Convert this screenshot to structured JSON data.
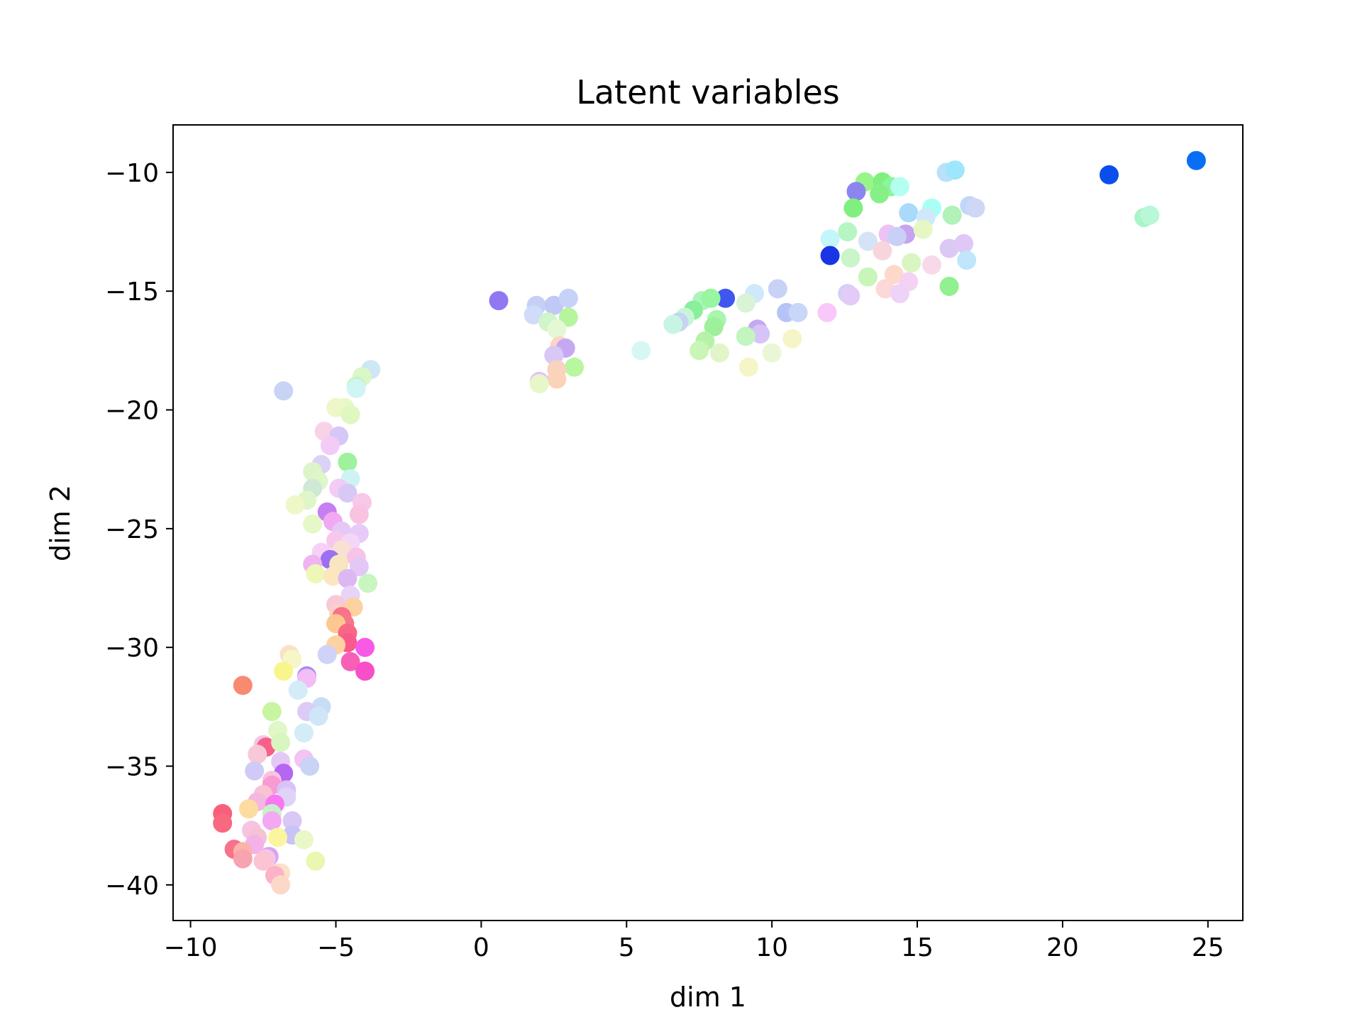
{
  "chart_data": {
    "type": "scatter",
    "title": "Latent variables",
    "xlabel": "dim 1",
    "ylabel": "dim 2",
    "xlim": [
      -10.6,
      26.2
    ],
    "ylim": [
      -41.5,
      -8.0
    ],
    "xticks": [
      -10,
      -5,
      0,
      5,
      10,
      15,
      20,
      25
    ],
    "yticks": [
      -10,
      -15,
      -20,
      -25,
      -30,
      -35,
      -40
    ],
    "xtick_labels": [
      "−10",
      "−5",
      "0",
      "5",
      "10",
      "15",
      "20",
      "25"
    ],
    "ytick_labels": [
      "−10",
      "−15",
      "−20",
      "−25",
      "−30",
      "−35",
      "−40"
    ],
    "grid": false,
    "legend": "none",
    "points": [
      {
        "x": 24.6,
        "y": -9.5,
        "color": "#0a6ef5"
      },
      {
        "x": 21.6,
        "y": -10.1,
        "color": "#0a4fee"
      },
      {
        "x": 22.8,
        "y": -11.9,
        "color": "#a8f5c8"
      },
      {
        "x": 23.0,
        "y": -11.8,
        "color": "#b8f7d8"
      },
      {
        "x": 16.0,
        "y": -10.0,
        "color": "#b8e2fa"
      },
      {
        "x": 16.3,
        "y": -9.9,
        "color": "#9ee6fb"
      },
      {
        "x": 13.2,
        "y": -10.4,
        "color": "#99f58a"
      },
      {
        "x": 13.8,
        "y": -10.4,
        "color": "#7ff07f"
      },
      {
        "x": 14.1,
        "y": -10.6,
        "color": "#8af59a"
      },
      {
        "x": 14.4,
        "y": -10.6,
        "color": "#b3fff0"
      },
      {
        "x": 13.7,
        "y": -10.9,
        "color": "#86f086"
      },
      {
        "x": 12.9,
        "y": -10.8,
        "color": "#8b86ef"
      },
      {
        "x": 12.8,
        "y": -11.5,
        "color": "#7ff07f"
      },
      {
        "x": 14.7,
        "y": -11.7,
        "color": "#a9d9fb"
      },
      {
        "x": 15.5,
        "y": -11.5,
        "color": "#aafff5"
      },
      {
        "x": 16.2,
        "y": -11.8,
        "color": "#b0f2b8"
      },
      {
        "x": 16.8,
        "y": -11.4,
        "color": "#c1d7fa"
      },
      {
        "x": 17.0,
        "y": -11.5,
        "color": "#cfd7f6"
      },
      {
        "x": 15.3,
        "y": -11.9,
        "color": "#cfe9fb"
      },
      {
        "x": 12.0,
        "y": -12.8,
        "color": "#c3f6fb"
      },
      {
        "x": 12.6,
        "y": -12.5,
        "color": "#b7f5c2"
      },
      {
        "x": 13.3,
        "y": -12.9,
        "color": "#d4e4f6"
      },
      {
        "x": 14.0,
        "y": -12.6,
        "color": "#efc2f7"
      },
      {
        "x": 14.6,
        "y": -12.6,
        "color": "#c7a3f0"
      },
      {
        "x": 15.2,
        "y": -12.4,
        "color": "#e7f7c4"
      },
      {
        "x": 14.3,
        "y": -12.7,
        "color": "#c8d0f6"
      },
      {
        "x": 16.1,
        "y": -13.2,
        "color": "#dcc8f5"
      },
      {
        "x": 16.6,
        "y": -13.0,
        "color": "#dfc8f7"
      },
      {
        "x": 16.7,
        "y": -13.7,
        "color": "#bfe6fb"
      },
      {
        "x": 12.0,
        "y": -13.5,
        "color": "#1a35e5"
      },
      {
        "x": 12.7,
        "y": -13.6,
        "color": "#c9f5c9"
      },
      {
        "x": 13.8,
        "y": -13.3,
        "color": "#f8d5dd"
      },
      {
        "x": 15.5,
        "y": -13.9,
        "color": "#f8d9ea"
      },
      {
        "x": 14.8,
        "y": -13.8,
        "color": "#d9f5c2"
      },
      {
        "x": 13.3,
        "y": -14.4,
        "color": "#c8f5b8"
      },
      {
        "x": 14.2,
        "y": -14.3,
        "color": "#ffd9c8"
      },
      {
        "x": 14.7,
        "y": -14.6,
        "color": "#f5d2f2"
      },
      {
        "x": 13.9,
        "y": -14.9,
        "color": "#fcd8d8"
      },
      {
        "x": 14.4,
        "y": -15.1,
        "color": "#efd2f7"
      },
      {
        "x": 16.1,
        "y": -14.8,
        "color": "#91f08f"
      },
      {
        "x": 12.6,
        "y": -15.1,
        "color": "#d3d0f6"
      },
      {
        "x": 12.7,
        "y": -15.2,
        "color": "#e3cbf7"
      },
      {
        "x": 11.9,
        "y": -15.9,
        "color": "#f8c8fa"
      },
      {
        "x": 10.2,
        "y": -14.9,
        "color": "#c8d2f6"
      },
      {
        "x": 10.5,
        "y": -15.9,
        "color": "#b6c3f6"
      },
      {
        "x": 10.9,
        "y": -15.9,
        "color": "#c8d6f8"
      },
      {
        "x": 9.4,
        "y": -15.1,
        "color": "#cfe9fb"
      },
      {
        "x": 9.1,
        "y": -15.5,
        "color": "#d9f3d6"
      },
      {
        "x": 8.4,
        "y": -15.3,
        "color": "#3f56f0"
      },
      {
        "x": 7.6,
        "y": -15.4,
        "color": "#aaf5b8"
      },
      {
        "x": 7.9,
        "y": -15.3,
        "color": "#98f5a0"
      },
      {
        "x": 7.3,
        "y": -15.8,
        "color": "#88f09a"
      },
      {
        "x": 7.0,
        "y": -16.1,
        "color": "#c8f5d8"
      },
      {
        "x": 6.8,
        "y": -16.3,
        "color": "#c6d4f4"
      },
      {
        "x": 6.6,
        "y": -16.4,
        "color": "#c8f5e3"
      },
      {
        "x": 8.1,
        "y": -16.2,
        "color": "#a8f5b0"
      },
      {
        "x": 8.0,
        "y": -16.5,
        "color": "#9ef09a"
      },
      {
        "x": 9.5,
        "y": -16.6,
        "color": "#c4a8f2"
      },
      {
        "x": 9.6,
        "y": -16.8,
        "color": "#d6c3f8"
      },
      {
        "x": 9.1,
        "y": -16.9,
        "color": "#c2f5c0"
      },
      {
        "x": 10.7,
        "y": -17.0,
        "color": "#f6f5c8"
      },
      {
        "x": 7.7,
        "y": -17.1,
        "color": "#b6f3a8"
      },
      {
        "x": 7.5,
        "y": -17.5,
        "color": "#c9f5b6"
      },
      {
        "x": 8.2,
        "y": -17.6,
        "color": "#e2f5c8"
      },
      {
        "x": 10.0,
        "y": -17.6,
        "color": "#eaf7d6"
      },
      {
        "x": 9.2,
        "y": -18.2,
        "color": "#f5f5c8"
      },
      {
        "x": 5.5,
        "y": -17.5,
        "color": "#d8f7f3"
      },
      {
        "x": 0.6,
        "y": -15.4,
        "color": "#9177f2"
      },
      {
        "x": 1.9,
        "y": -15.6,
        "color": "#c5d0f8"
      },
      {
        "x": 2.5,
        "y": -15.6,
        "color": "#c0c8f6"
      },
      {
        "x": 3.0,
        "y": -15.3,
        "color": "#c6d2f8"
      },
      {
        "x": 1.8,
        "y": -16.0,
        "color": "#d0dcf8"
      },
      {
        "x": 2.3,
        "y": -16.3,
        "color": "#d0f5c8"
      },
      {
        "x": 3.0,
        "y": -16.1,
        "color": "#b6f59c"
      },
      {
        "x": 2.6,
        "y": -16.6,
        "color": "#e6f7d6"
      },
      {
        "x": 2.7,
        "y": -17.3,
        "color": "#fcd6c0"
      },
      {
        "x": 2.9,
        "y": -17.4,
        "color": "#c6a8f2"
      },
      {
        "x": 2.5,
        "y": -17.7,
        "color": "#d8c8f6"
      },
      {
        "x": 3.2,
        "y": -18.2,
        "color": "#b6f7a0"
      },
      {
        "x": 2.6,
        "y": -18.3,
        "color": "#f8d3c0"
      },
      {
        "x": 2.6,
        "y": -18.7,
        "color": "#fbd3b8"
      },
      {
        "x": 2.0,
        "y": -18.8,
        "color": "#e0c3f7"
      },
      {
        "x": 2.0,
        "y": -18.9,
        "color": "#e7f7c8"
      },
      {
        "x": -3.8,
        "y": -18.3,
        "color": "#cfe6f6"
      },
      {
        "x": -4.1,
        "y": -18.6,
        "color": "#d9f7c8"
      },
      {
        "x": -4.3,
        "y": -19.0,
        "color": "#c8f3c0"
      },
      {
        "x": -4.3,
        "y": -19.1,
        "color": "#d0f6f3"
      },
      {
        "x": -6.8,
        "y": -19.2,
        "color": "#c8d3f5"
      },
      {
        "x": -4.7,
        "y": -19.9,
        "color": "#e9f7c8"
      },
      {
        "x": -5.0,
        "y": -19.9,
        "color": "#eef7c8"
      },
      {
        "x": -4.5,
        "y": -20.2,
        "color": "#dff7c0"
      },
      {
        "x": -5.4,
        "y": -20.9,
        "color": "#f8d3e8"
      },
      {
        "x": -4.9,
        "y": -21.1,
        "color": "#d5c8f6"
      },
      {
        "x": -5.2,
        "y": -21.5,
        "color": "#f3cbf7"
      },
      {
        "x": -4.6,
        "y": -22.2,
        "color": "#9ef29c"
      },
      {
        "x": -5.5,
        "y": -22.3,
        "color": "#dcd2f6"
      },
      {
        "x": -5.8,
        "y": -22.6,
        "color": "#dcf5c8"
      },
      {
        "x": -4.5,
        "y": -22.9,
        "color": "#cff3f5"
      },
      {
        "x": -5.6,
        "y": -23.0,
        "color": "#dff7c8"
      },
      {
        "x": -5.8,
        "y": -23.3,
        "color": "#cfe9d6"
      },
      {
        "x": -4.9,
        "y": -23.3,
        "color": "#f3cbf5"
      },
      {
        "x": -4.6,
        "y": -23.5,
        "color": "#d8c8f6"
      },
      {
        "x": -6.0,
        "y": -23.8,
        "color": "#dff7c8"
      },
      {
        "x": -6.4,
        "y": -24.0,
        "color": "#eef7c8"
      },
      {
        "x": -4.1,
        "y": -23.9,
        "color": "#f8c8e8"
      },
      {
        "x": -5.3,
        "y": -24.3,
        "color": "#c67ff2"
      },
      {
        "x": -4.2,
        "y": -24.4,
        "color": "#f8c3e0"
      },
      {
        "x": -5.1,
        "y": -24.7,
        "color": "#f3a8f2"
      },
      {
        "x": -5.8,
        "y": -24.8,
        "color": "#e6f7c8"
      },
      {
        "x": -4.8,
        "y": -25.1,
        "color": "#e6c8f6"
      },
      {
        "x": -4.2,
        "y": -25.2,
        "color": "#e6cbf8"
      },
      {
        "x": -5.0,
        "y": -25.5,
        "color": "#f8c8ec"
      },
      {
        "x": -4.5,
        "y": -25.6,
        "color": "#f3d6f8"
      },
      {
        "x": -4.8,
        "y": -25.9,
        "color": "#f8e0d2"
      },
      {
        "x": -5.5,
        "y": -26.0,
        "color": "#f8d0f5"
      },
      {
        "x": -4.3,
        "y": -26.2,
        "color": "#f8c3e8"
      },
      {
        "x": -5.2,
        "y": -26.3,
        "color": "#9a6ff2"
      },
      {
        "x": -5.8,
        "y": -26.5,
        "color": "#f0b3f2"
      },
      {
        "x": -4.9,
        "y": -26.5,
        "color": "#f8e6c0"
      },
      {
        "x": -4.2,
        "y": -26.6,
        "color": "#e3c8f6"
      },
      {
        "x": -5.7,
        "y": -26.9,
        "color": "#eef7b8"
      },
      {
        "x": -5.1,
        "y": -27.0,
        "color": "#fce6c0"
      },
      {
        "x": -4.6,
        "y": -27.1,
        "color": "#dcb8f3"
      },
      {
        "x": -3.9,
        "y": -27.3,
        "color": "#c8f5c0"
      },
      {
        "x": -4.5,
        "y": -27.8,
        "color": "#e9d3f8"
      },
      {
        "x": -5.0,
        "y": -28.2,
        "color": "#f8c8d8"
      },
      {
        "x": -4.4,
        "y": -28.3,
        "color": "#fcd2a0"
      },
      {
        "x": -4.9,
        "y": -28.6,
        "color": "#f8d3c0"
      },
      {
        "x": -4.8,
        "y": -28.7,
        "color": "#f8728a"
      },
      {
        "x": -4.7,
        "y": -29.0,
        "color": "#f77788"
      },
      {
        "x": -5.0,
        "y": -29.0,
        "color": "#fcc890"
      },
      {
        "x": -4.6,
        "y": -29.4,
        "color": "#f86886"
      },
      {
        "x": -4.6,
        "y": -29.8,
        "color": "#f85a8c"
      },
      {
        "x": -5.0,
        "y": -29.9,
        "color": "#fcd3a0"
      },
      {
        "x": -4.0,
        "y": -30.0,
        "color": "#f85ae6"
      },
      {
        "x": -4.5,
        "y": -30.6,
        "color": "#f860b8"
      },
      {
        "x": -4.0,
        "y": -31.0,
        "color": "#f84ec8"
      },
      {
        "x": -5.3,
        "y": -30.3,
        "color": "#cfd3f8"
      },
      {
        "x": -6.6,
        "y": -30.3,
        "color": "#fce0c8"
      },
      {
        "x": -6.5,
        "y": -30.5,
        "color": "#f8f5c8"
      },
      {
        "x": -6.8,
        "y": -31.0,
        "color": "#f8f58c"
      },
      {
        "x": -6.0,
        "y": -31.2,
        "color": "#a78bf2"
      },
      {
        "x": -6.0,
        "y": -31.3,
        "color": "#f3bdf5"
      },
      {
        "x": -8.2,
        "y": -31.6,
        "color": "#f88a70"
      },
      {
        "x": -6.3,
        "y": -31.8,
        "color": "#d3ecf8"
      },
      {
        "x": -7.2,
        "y": -32.7,
        "color": "#c8f5a0"
      },
      {
        "x": -5.5,
        "y": -32.5,
        "color": "#c8dcf6"
      },
      {
        "x": -6.0,
        "y": -32.7,
        "color": "#dccbf6"
      },
      {
        "x": -5.6,
        "y": -32.9,
        "color": "#cfe6f8"
      },
      {
        "x": -7.0,
        "y": -33.5,
        "color": "#e0f7c8"
      },
      {
        "x": -6.1,
        "y": -33.6,
        "color": "#d3ecf6"
      },
      {
        "x": -7.5,
        "y": -34.1,
        "color": "#f3c8e6"
      },
      {
        "x": -7.4,
        "y": -34.2,
        "color": "#f8608a"
      },
      {
        "x": -6.9,
        "y": -34.0,
        "color": "#d9f5c0"
      },
      {
        "x": -6.1,
        "y": -34.7,
        "color": "#f3c3f3"
      },
      {
        "x": -7.7,
        "y": -34.5,
        "color": "#f8c8d8"
      },
      {
        "x": -6.9,
        "y": -34.8,
        "color": "#e6c8f6"
      },
      {
        "x": -5.9,
        "y": -35.0,
        "color": "#c8d3f6"
      },
      {
        "x": -6.8,
        "y": -35.3,
        "color": "#b566f2"
      },
      {
        "x": -7.8,
        "y": -35.2,
        "color": "#d0cbf6"
      },
      {
        "x": -7.2,
        "y": -35.6,
        "color": "#f8c3e0"
      },
      {
        "x": -7.2,
        "y": -35.8,
        "color": "#f89ad3"
      },
      {
        "x": -6.7,
        "y": -36.0,
        "color": "#d9c3f6"
      },
      {
        "x": -7.5,
        "y": -36.2,
        "color": "#f8c3d3"
      },
      {
        "x": -7.7,
        "y": -36.5,
        "color": "#f3b8e0"
      },
      {
        "x": -6.7,
        "y": -36.3,
        "color": "#e0d3f8"
      },
      {
        "x": -7.1,
        "y": -36.6,
        "color": "#f877f3"
      },
      {
        "x": -8.0,
        "y": -36.8,
        "color": "#fcdca0"
      },
      {
        "x": -7.2,
        "y": -37.0,
        "color": "#c8f0c8"
      },
      {
        "x": -8.9,
        "y": -37.0,
        "color": "#f8607a"
      },
      {
        "x": -7.2,
        "y": -37.3,
        "color": "#f3a8f3"
      },
      {
        "x": -8.9,
        "y": -37.4,
        "color": "#f86880"
      },
      {
        "x": -6.5,
        "y": -37.3,
        "color": "#d9c8f6"
      },
      {
        "x": -7.9,
        "y": -37.7,
        "color": "#f8c3e0"
      },
      {
        "x": -6.5,
        "y": -37.9,
        "color": "#c8c3f6"
      },
      {
        "x": -7.7,
        "y": -38.0,
        "color": "#f3c3d3"
      },
      {
        "x": -7.0,
        "y": -38.0,
        "color": "#fcf5a0"
      },
      {
        "x": -6.1,
        "y": -38.1,
        "color": "#eaf7c8"
      },
      {
        "x": -7.8,
        "y": -38.3,
        "color": "#f3b3e8"
      },
      {
        "x": -8.5,
        "y": -38.5,
        "color": "#f8728a"
      },
      {
        "x": -8.2,
        "y": -38.6,
        "color": "#fcb3a8"
      },
      {
        "x": -7.3,
        "y": -38.8,
        "color": "#d9a3f3"
      },
      {
        "x": -7.4,
        "y": -38.9,
        "color": "#f3c8e6"
      },
      {
        "x": -8.2,
        "y": -38.9,
        "color": "#f8a3b0"
      },
      {
        "x": -7.5,
        "y": -39.0,
        "color": "#fcc3d3"
      },
      {
        "x": -5.7,
        "y": -39.0,
        "color": "#eaf7b0"
      },
      {
        "x": -7.0,
        "y": -39.5,
        "color": "#fcd3d8"
      },
      {
        "x": -6.9,
        "y": -39.5,
        "color": "#fce0c8"
      },
      {
        "x": -7.1,
        "y": -39.6,
        "color": "#fcb3c8"
      },
      {
        "x": -6.9,
        "y": -40.0,
        "color": "#fcd8c8"
      }
    ]
  }
}
